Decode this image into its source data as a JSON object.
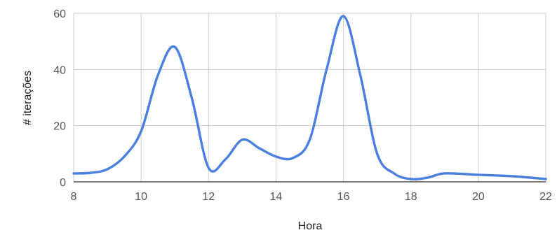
{
  "chart_data": {
    "type": "line",
    "xlabel": "Hora",
    "ylabel": "# iterações",
    "xlim": [
      8,
      22
    ],
    "ylim": [
      0,
      60
    ],
    "x_ticks": [
      8,
      10,
      12,
      14,
      16,
      18,
      20,
      22
    ],
    "y_ticks": [
      0,
      20,
      40,
      60
    ],
    "grid": true,
    "smooth": true,
    "series": [
      {
        "color": "#4a7fe0",
        "x": [
          8,
          8.5,
          9,
          9.5,
          10,
          10.5,
          11,
          11.5,
          12,
          12.5,
          13,
          13.5,
          14,
          14.5,
          15,
          15.5,
          16,
          16.5,
          17,
          17.5,
          18,
          18.5,
          19,
          20,
          21,
          22
        ],
        "y": [
          3,
          3.2,
          4.5,
          9,
          18,
          38,
          48,
          30,
          5,
          8,
          15,
          12,
          9,
          8.5,
          15,
          40,
          59,
          38,
          10,
          3,
          1,
          1.5,
          3,
          2.5,
          2,
          1
        ]
      }
    ]
  }
}
